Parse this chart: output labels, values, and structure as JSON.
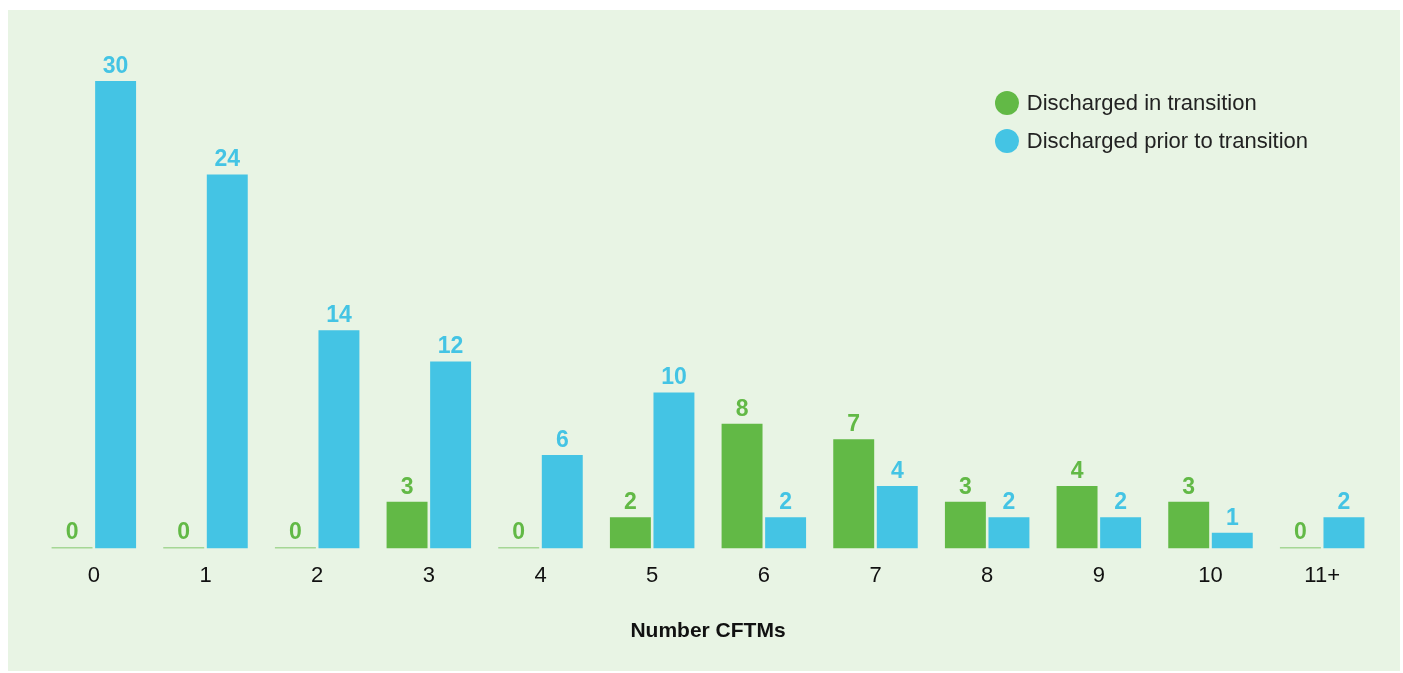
{
  "chart_data": {
    "type": "bar",
    "xlabel": "Number CFTMs",
    "categories": [
      "0",
      "1",
      "2",
      "3",
      "4",
      "5",
      "6",
      "7",
      "8",
      "9",
      "10",
      "11+"
    ],
    "series": [
      {
        "name": "Discharged in transition",
        "color": "#62b946",
        "values": [
          0,
          0,
          0,
          3,
          0,
          2,
          8,
          7,
          3,
          4,
          3,
          0
        ]
      },
      {
        "name": "Discharged prior to transition",
        "color": "#44c4e4",
        "values": [
          30,
          24,
          14,
          12,
          6,
          10,
          2,
          4,
          2,
          2,
          1,
          2
        ]
      }
    ],
    "tick_labels": "x",
    "data_labels": true,
    "legend": "top right",
    "grid": false
  }
}
